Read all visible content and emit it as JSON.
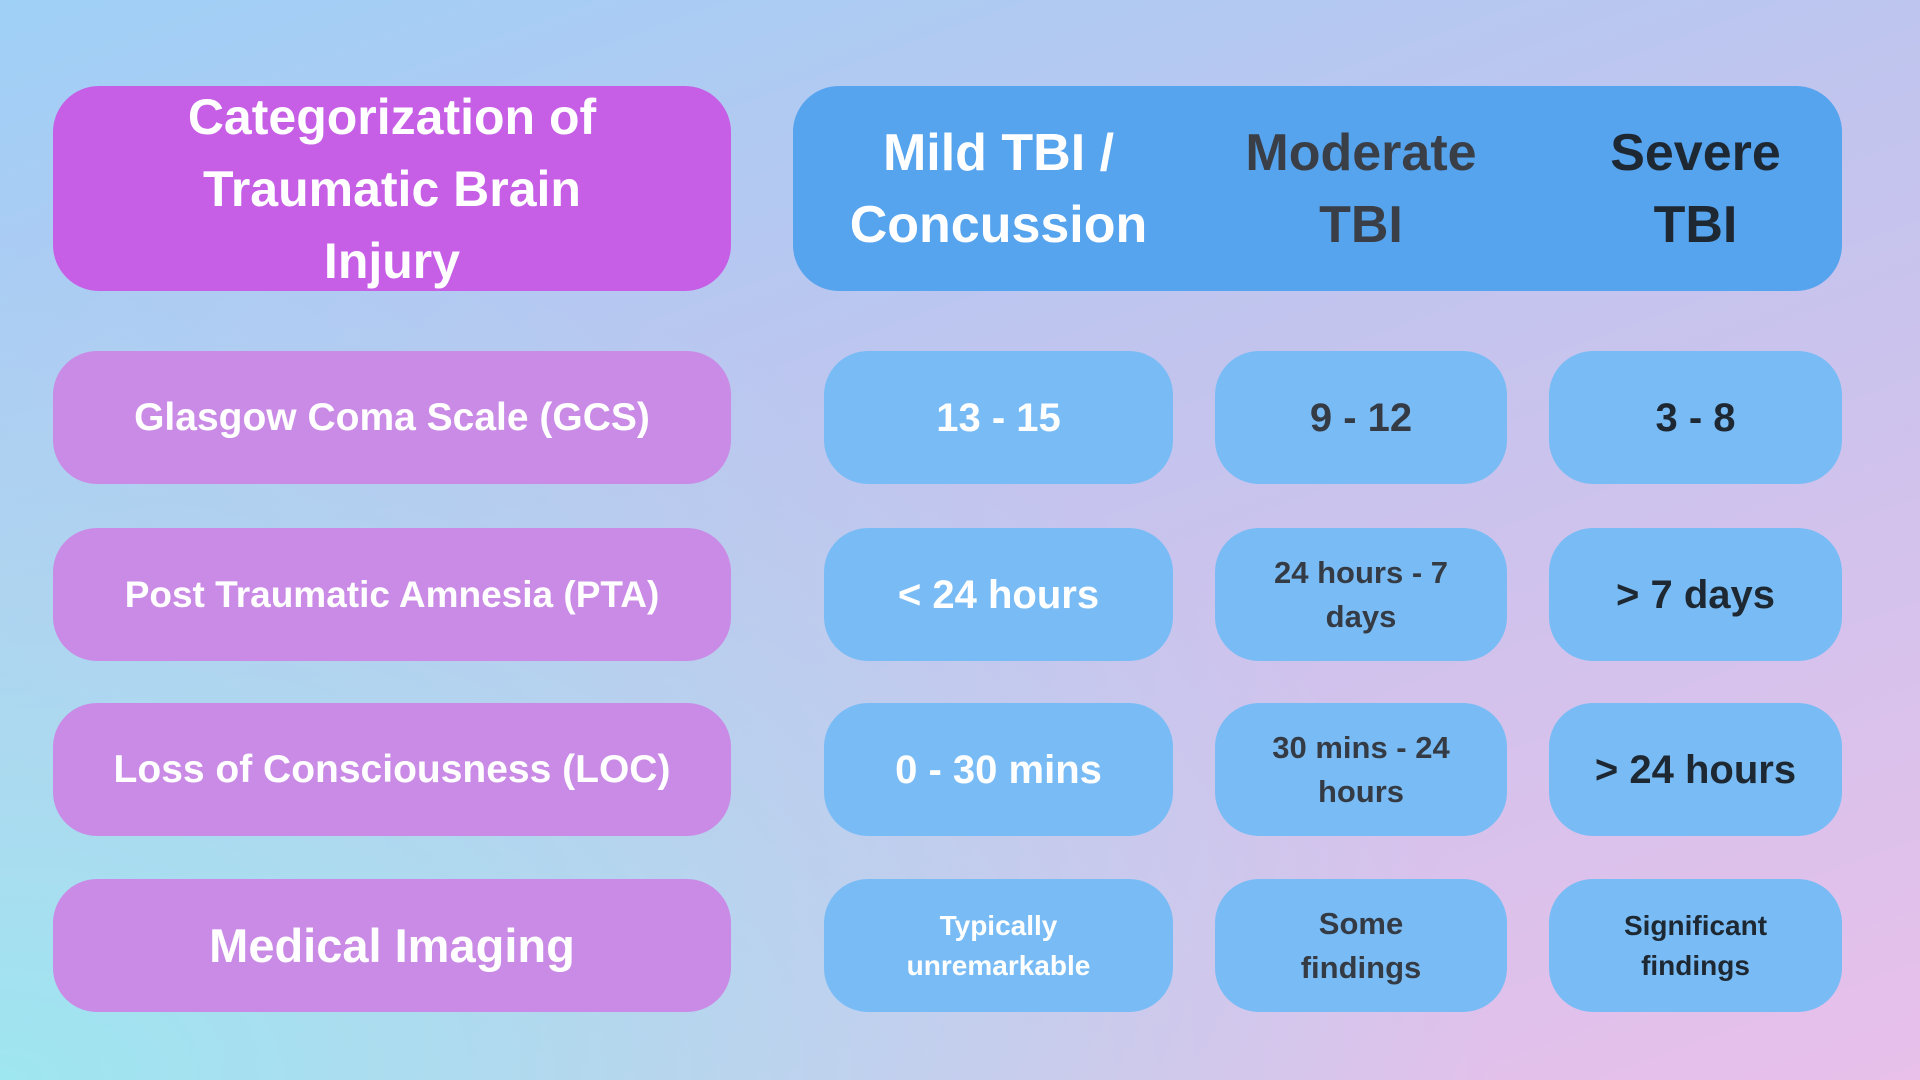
{
  "title": "Categorization of Traumatic Brain Injury",
  "columns": [
    "Mild TBI / Concussion",
    "Moderate TBI",
    "Severe TBI"
  ],
  "rows": [
    {
      "label": "Glasgow Coma Scale (GCS)",
      "values": [
        "13 - 15",
        "9 - 12",
        "3 - 8"
      ]
    },
    {
      "label": "Post Traumatic Amnesia (PTA)",
      "values": [
        "< 24 hours",
        "24 hours - 7 days",
        "> 7 days"
      ]
    },
    {
      "label": "Loss of Consciousness (LOC)",
      "values": [
        "0 - 30 mins",
        "30 mins - 24 hours",
        "> 24 hours"
      ]
    },
    {
      "label": "Medical Imaging",
      "values": [
        "Typically unremarkable",
        "Some findings",
        "Significant findings"
      ]
    }
  ],
  "colors": {
    "title_bg": "#c65fe5",
    "header_bg": "#56a3ee",
    "label_bg": "#c98be5",
    "cell_bg": "#79bcf5"
  }
}
